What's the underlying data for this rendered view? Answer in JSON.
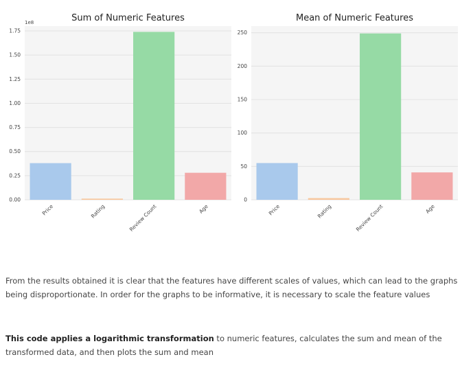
{
  "chart_data": [
    {
      "type": "bar",
      "title": "Sum of Numeric Features",
      "categories": [
        "Price",
        "Rating",
        "Review Count",
        "Age"
      ],
      "values": [
        38000000,
        1200000,
        174000000,
        28000000
      ],
      "ylim": [
        0,
        180000000
      ],
      "yticks": [
        0,
        25000000,
        50000000,
        75000000,
        100000000,
        125000000,
        150000000,
        175000000
      ],
      "ytick_labels": [
        "0.00",
        "0.25",
        "0.50",
        "0.75",
        "1.00",
        "1.25",
        "1.50",
        "1.75"
      ],
      "offset_text": "1e8",
      "xlabel": "",
      "ylabel": "",
      "grid": true,
      "colors": [
        "#a9c9ec",
        "#f8c79e",
        "#96daa5",
        "#f2a8a8"
      ]
    },
    {
      "type": "bar",
      "title": "Mean of Numeric Features",
      "categories": [
        "Price",
        "Rating",
        "Review Count",
        "Age"
      ],
      "values": [
        55,
        2.5,
        249,
        41
      ],
      "ylim": [
        0,
        260
      ],
      "yticks": [
        0,
        50,
        100,
        150,
        200,
        250
      ],
      "ytick_labels": [
        "0",
        "50",
        "100",
        "150",
        "200",
        "250"
      ],
      "xlabel": "",
      "ylabel": "",
      "grid": true,
      "colors": [
        "#a9c9ec",
        "#f8c79e",
        "#96daa5",
        "#f2a8a8"
      ]
    }
  ],
  "text": {
    "para1": "From the results obtained it is clear that the features have different scales of values, which can lead to the graphs being disproportionate. In order for the graphs to be informative, it is necessary to scale the feature values",
    "para2_bold": "This code applies a logarithmic transformation",
    "para2_rest": " to numeric features, calculates the sum and mean of the transformed data, and then plots the sum and mean"
  }
}
